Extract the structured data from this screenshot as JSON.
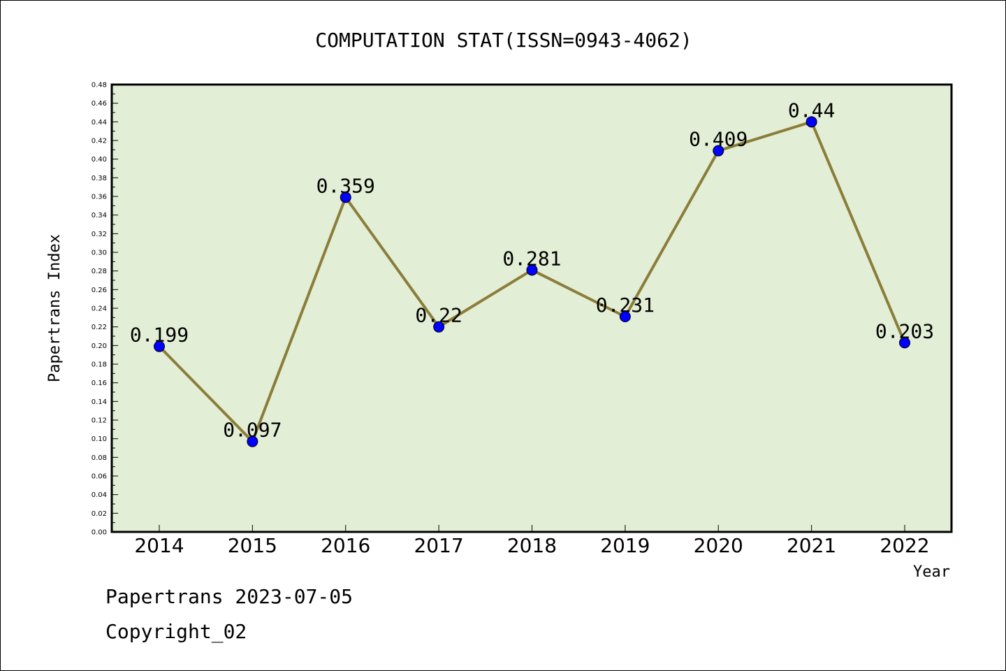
{
  "chart_data": {
    "type": "line",
    "title": "COMPUTATION STAT(ISSN=0943-4062)",
    "xlabel": "Year",
    "ylabel": "Papertrans Index",
    "categories": [
      "2014",
      "2015",
      "2016",
      "2017",
      "2018",
      "2019",
      "2020",
      "2021",
      "2022"
    ],
    "series": [
      {
        "values": [
          0.199,
          0.097,
          0.359,
          0.22,
          0.281,
          0.231,
          0.409,
          0.44,
          0.203
        ],
        "labels": [
          "0.199",
          "0.097",
          "0.359",
          "0.22",
          "0.281",
          "0.231",
          "0.409",
          "0.44",
          "0.203"
        ],
        "line_color": "#8b7d3a",
        "marker_color": "#0000ff"
      }
    ],
    "ylim": [
      0,
      0.48
    ],
    "yticks": [
      "0.00",
      "0.02",
      "0.04",
      "0.06",
      "0.08",
      "0.10",
      "0.12",
      "0.14",
      "0.16",
      "0.18",
      "0.20",
      "0.22",
      "0.24",
      "0.26",
      "0.28",
      "0.30",
      "0.32",
      "0.34",
      "0.36",
      "0.38",
      "0.40",
      "0.42",
      "0.44",
      "0.46",
      "0.48"
    ],
    "plot_background": "#e2efd6",
    "grid": false
  },
  "footer": {
    "line1": "Papertrans 2023-07-05",
    "line2": "Copyright_02"
  }
}
